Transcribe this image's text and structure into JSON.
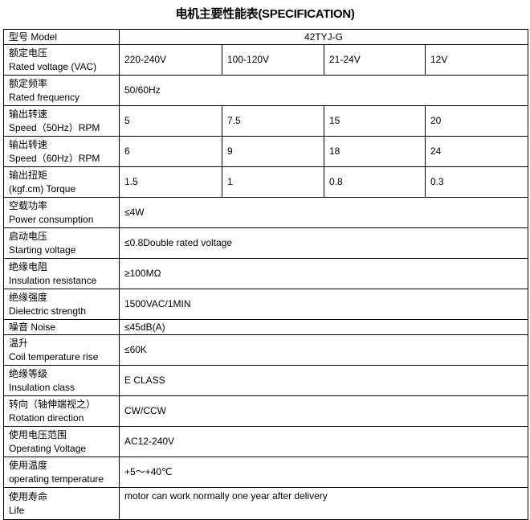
{
  "title": "电机主要性能表(SPECIFICATION)",
  "rows": [
    {
      "label_cn": "型号 Model",
      "label_en": "",
      "values": [
        "42TYJ-G"
      ]
    },
    {
      "label_cn": "额定电压",
      "label_en": "Rated voltage (VAC)",
      "values": [
        "220-240V",
        "100-120V",
        "21-24V",
        "12V"
      ]
    },
    {
      "label_cn": "额定频率",
      "label_en": "Rated frequency",
      "values": [
        "50/60Hz"
      ]
    },
    {
      "label_cn": "输出转速",
      "label_en": "Speed（50Hz）RPM",
      "values": [
        "5",
        "7.5",
        "15",
        "20"
      ]
    },
    {
      "label_cn": "输出转速",
      "label_en": "Speed（60Hz）RPM",
      "values": [
        "6",
        "9",
        "18",
        "24"
      ]
    },
    {
      "label_cn": "输出扭矩",
      "label_en": "(kgf.cm) Torque",
      "values": [
        "1.5",
        "1",
        "0.8",
        "0.3"
      ]
    },
    {
      "label_cn": "空载功率",
      "label_en": "Power consumption",
      "values": [
        "≤4W"
      ]
    },
    {
      "label_cn": "启动电压",
      "label_en": "Starting voltage",
      "values": [
        "≤0.8Double rated voltage"
      ]
    },
    {
      "label_cn": "绝缘电阻",
      "label_en": "Insulation resistance",
      "values": [
        "≥100MΩ"
      ]
    },
    {
      "label_cn": "绝缘强度",
      "label_en": "Dielectric strength",
      "values": [
        "1500VAC/1MIN"
      ]
    },
    {
      "label_cn": "噪音 Noise",
      "label_en": "",
      "values": [
        "≤45dB(A)"
      ]
    },
    {
      "label_cn": "温升",
      "label_en": "Coil temperature rise",
      "values": [
        "≤60K"
      ]
    },
    {
      "label_cn": "绝缘等级",
      "label_en": "Insulation class",
      "values": [
        "E CLASS"
      ]
    },
    {
      "label_cn": "转向（轴伸端视之）",
      "label_en": "Rotation direction",
      "values": [
        "CW/CCW"
      ]
    },
    {
      "label_cn": "使用电压范围",
      "label_en": "Operating Voltage",
      "values": [
        "AC12-240V"
      ]
    },
    {
      "label_cn": "使用温度",
      "label_en": "operating temperature",
      "values": [
        "+5～+40℃"
      ]
    },
    {
      "label_cn": "使用寿命",
      "label_en": "Life",
      "values": [
        "motor can work normally one year after delivery"
      ]
    }
  ]
}
